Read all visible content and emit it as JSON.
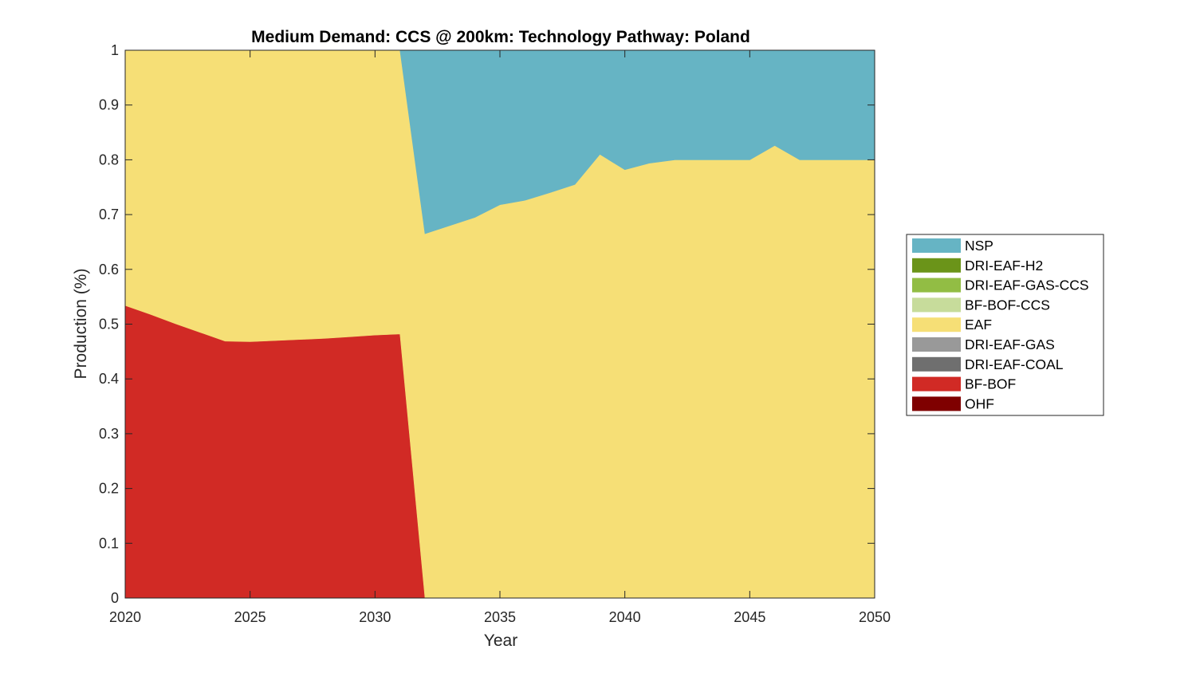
{
  "chart_data": {
    "type": "area",
    "stacked": true,
    "title": "Medium Demand: CCS @ 200km: Technology Pathway: Poland",
    "xlabel": "Year",
    "ylabel": "Production (%)",
    "xlim": [
      2020,
      2050
    ],
    "ylim": [
      0,
      1
    ],
    "xticks": [
      2020,
      2025,
      2030,
      2035,
      2040,
      2045,
      2050
    ],
    "yticks": [
      0,
      0.1,
      0.2,
      0.3,
      0.4,
      0.5,
      0.6,
      0.7,
      0.8,
      0.9,
      1
    ],
    "ytick_labels": [
      "0",
      "0.1",
      "0.2",
      "0.3",
      "0.4",
      "0.5",
      "0.6",
      "0.7",
      "0.8",
      "0.9",
      "1"
    ],
    "grid": false,
    "legend_position": "right",
    "x": [
      2020,
      2021,
      2022,
      2023,
      2024,
      2025,
      2026,
      2027,
      2028,
      2029,
      2030,
      2031,
      2032,
      2033,
      2034,
      2035,
      2036,
      2037,
      2038,
      2039,
      2040,
      2041,
      2042,
      2043,
      2044,
      2045,
      2046,
      2047,
      2048,
      2049,
      2050
    ],
    "series": [
      {
        "name": "OHF",
        "color": "#7f0000",
        "values": [
          0,
          0,
          0,
          0,
          0,
          0,
          0,
          0,
          0,
          0,
          0,
          0,
          0,
          0,
          0,
          0,
          0,
          0,
          0,
          0,
          0,
          0,
          0,
          0,
          0,
          0,
          0,
          0,
          0,
          0,
          0
        ]
      },
      {
        "name": "BF-BOF",
        "color": "#d12a25",
        "values": [
          0.534,
          0.518,
          0.501,
          0.485,
          0.469,
          0.468,
          0.47,
          0.472,
          0.474,
          0.477,
          0.48,
          0.482,
          0,
          0,
          0,
          0,
          0,
          0,
          0,
          0,
          0,
          0,
          0,
          0,
          0,
          0,
          0,
          0,
          0,
          0,
          0
        ]
      },
      {
        "name": "DRI-EAF-COAL",
        "color": "#6f6f6f",
        "values": [
          0,
          0,
          0,
          0,
          0,
          0,
          0,
          0,
          0,
          0,
          0,
          0,
          0,
          0,
          0,
          0,
          0,
          0,
          0,
          0,
          0,
          0,
          0,
          0,
          0,
          0,
          0,
          0,
          0,
          0,
          0
        ]
      },
      {
        "name": "DRI-EAF-GAS",
        "color": "#999999",
        "values": [
          0,
          0,
          0,
          0,
          0,
          0,
          0,
          0,
          0,
          0,
          0,
          0,
          0,
          0,
          0,
          0,
          0,
          0,
          0,
          0,
          0,
          0,
          0,
          0,
          0,
          0,
          0,
          0,
          0,
          0,
          0
        ]
      },
      {
        "name": "EAF",
        "color": "#f6df76",
        "values": [
          0.466,
          0.482,
          0.499,
          0.515,
          0.531,
          0.532,
          0.53,
          0.528,
          0.526,
          0.523,
          0.52,
          0.518,
          0.665,
          0.68,
          0.695,
          0.718,
          0.726,
          0.74,
          0.755,
          0.81,
          0.782,
          0.794,
          0.8,
          0.8,
          0.8,
          0.8,
          0.826,
          0.8,
          0.8,
          0.8,
          0.8
        ]
      },
      {
        "name": "BF-BOF-CCS",
        "color": "#c7dc9b",
        "values": [
          0,
          0,
          0,
          0,
          0,
          0,
          0,
          0,
          0,
          0,
          0,
          0,
          0,
          0,
          0,
          0,
          0,
          0,
          0,
          0,
          0,
          0,
          0,
          0,
          0,
          0,
          0,
          0,
          0,
          0,
          0
        ]
      },
      {
        "name": "DRI-EAF-GAS-CCS",
        "color": "#92bd44",
        "values": [
          0,
          0,
          0,
          0,
          0,
          0,
          0,
          0,
          0,
          0,
          0,
          0,
          0,
          0,
          0,
          0,
          0,
          0,
          0,
          0,
          0,
          0,
          0,
          0,
          0,
          0,
          0,
          0,
          0,
          0,
          0
        ]
      },
      {
        "name": "DRI-EAF-H2",
        "color": "#6b9419",
        "values": [
          0,
          0,
          0,
          0,
          0,
          0,
          0,
          0,
          0,
          0,
          0,
          0,
          0,
          0,
          0,
          0,
          0,
          0,
          0,
          0,
          0,
          0,
          0,
          0,
          0,
          0,
          0,
          0,
          0,
          0,
          0
        ]
      },
      {
        "name": "NSP",
        "color": "#66b4c4",
        "values": [
          0,
          0,
          0,
          0,
          0,
          0,
          0,
          0,
          0,
          0,
          0,
          0,
          0.335,
          0.32,
          0.305,
          0.282,
          0.274,
          0.26,
          0.245,
          0.19,
          0.218,
          0.206,
          0.2,
          0.2,
          0.2,
          0.2,
          0.174,
          0.2,
          0.2,
          0.2,
          0.2
        ]
      }
    ],
    "legend_order": [
      "NSP",
      "DRI-EAF-H2",
      "DRI-EAF-GAS-CCS",
      "BF-BOF-CCS",
      "EAF",
      "DRI-EAF-GAS",
      "DRI-EAF-COAL",
      "BF-BOF",
      "OHF"
    ]
  }
}
